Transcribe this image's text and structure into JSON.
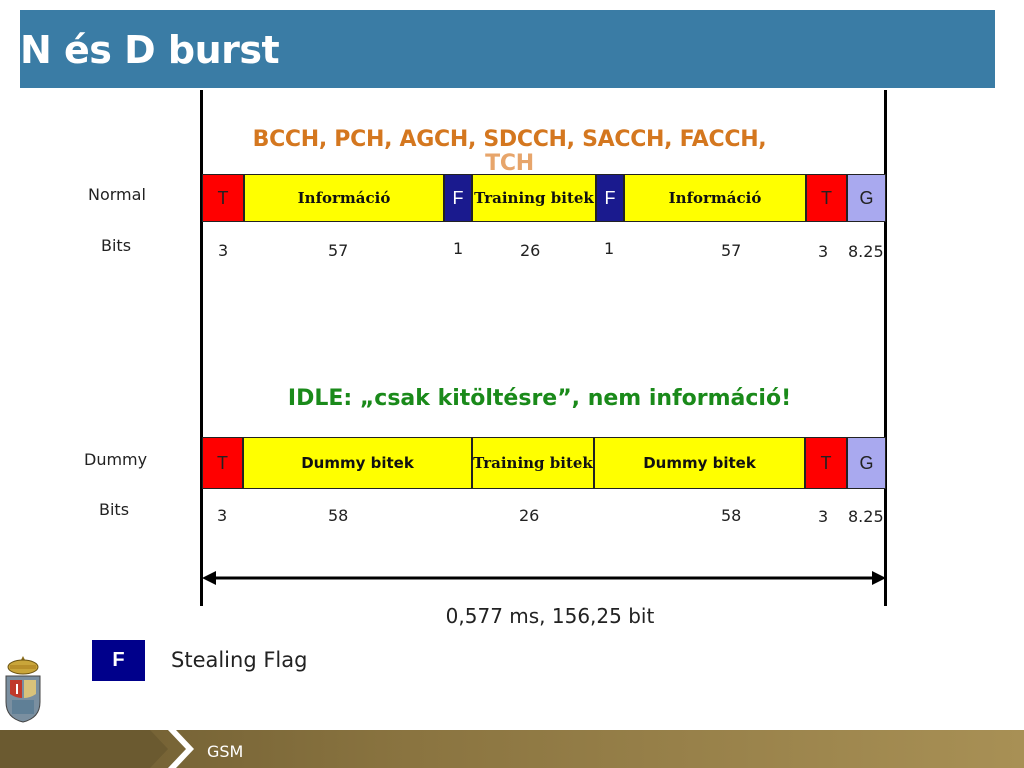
{
  "title": "N és D burst",
  "channels": {
    "line1": "BCCH, PCH, AGCH, SDCCH, SACCH, FACCH,",
    "line2": "TCH"
  },
  "normal": {
    "label": "Normal",
    "bits_label": "Bits",
    "segments": [
      {
        "label": "T",
        "bits": "3"
      },
      {
        "label": "Információ",
        "bits": "57"
      },
      {
        "label": "F",
        "bits": "1"
      },
      {
        "label": "Training bitek",
        "bits": "26"
      },
      {
        "label": "F",
        "bits": "1"
      },
      {
        "label": "Információ",
        "bits": "57"
      },
      {
        "label": "T",
        "bits": "3"
      },
      {
        "label": "G",
        "bits": "8.25"
      }
    ]
  },
  "idle_note": "IDLE: „csak kitöltésre”, nem információ!",
  "dummy": {
    "label": "Dummy",
    "bits_label": "Bits",
    "segments": [
      {
        "label": "T",
        "bits": "3"
      },
      {
        "label": "Dummy bitek",
        "bits": "58"
      },
      {
        "label": "Training bitek",
        "bits": "26"
      },
      {
        "label": "Dummy bitek",
        "bits": "58"
      },
      {
        "label": "T",
        "bits": "3"
      },
      {
        "label": "G",
        "bits": "8.25"
      }
    ]
  },
  "duration": "0,577 ms, 156,25 bit",
  "legend": {
    "symbol": "F",
    "text": "Stealing Flag"
  },
  "footer": {
    "text": "GSM"
  },
  "colors": {
    "title_bar": "#3a7ca5",
    "tail": "#ff0000",
    "flag": "#1a1a8e",
    "guard": "#a9a9ef",
    "info": "#ffff00",
    "channels_text": "#d4771f",
    "idle_text": "#1a8a1a"
  }
}
